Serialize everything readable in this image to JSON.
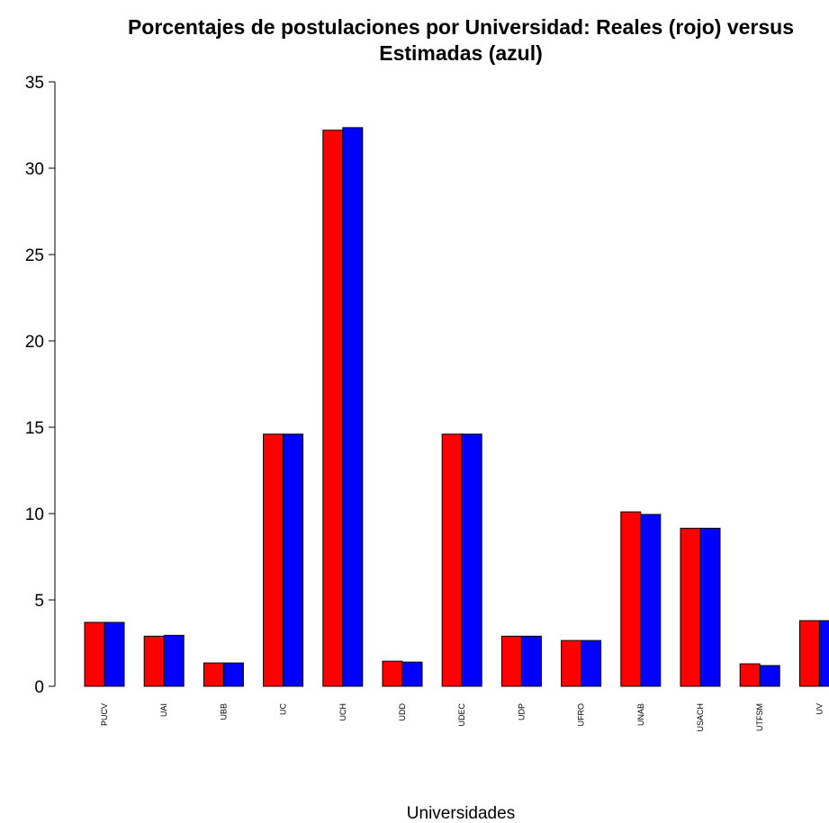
{
  "chart_data": {
    "type": "bar",
    "title_line1": "Porcentajes de postulaciones por Universidad: Reales (rojo) versus",
    "title_line2": "Estimadas (azul)",
    "xlabel": "Universidades",
    "ylabel": "",
    "ylim": [
      0,
      35
    ],
    "yticks": [
      "0",
      "5",
      "10",
      "15",
      "20",
      "25",
      "30",
      "35"
    ],
    "categories": [
      "PUCV",
      "UAI",
      "UBB",
      "UC",
      "UCH",
      "UDD",
      "UDEC",
      "UDP",
      "UFRO",
      "UNAB",
      "USACH",
      "UTFSM",
      "UV"
    ],
    "series": [
      {
        "name": "Reales",
        "color": "#ff0000",
        "values": [
          3.7,
          2.9,
          1.35,
          14.6,
          32.2,
          1.45,
          14.6,
          2.9,
          2.65,
          10.1,
          9.15,
          1.3,
          3.8
        ]
      },
      {
        "name": "Estimadas",
        "color": "#0000ff",
        "values": [
          3.7,
          2.95,
          1.35,
          14.6,
          32.35,
          1.4,
          14.6,
          2.9,
          2.65,
          9.95,
          9.15,
          1.2,
          3.8
        ]
      }
    ],
    "grid": false,
    "legend": "none"
  }
}
